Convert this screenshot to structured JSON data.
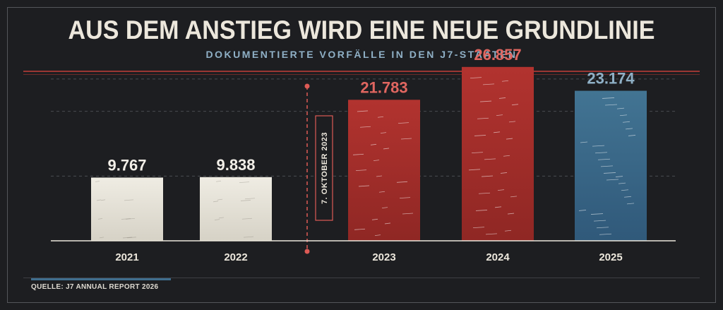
{
  "header": {
    "title": "AUS DEM ANSTIEG WIRD EINE NEUE GRUNDLINIE",
    "subtitle": "DOKUMENTIERTE VORFÄLLE IN DEN J7-STAATEN"
  },
  "footer": {
    "source": "QUELLE: J7 ANNUAL REPORT 2026"
  },
  "colors": {
    "pre_event": "#e5e2d8",
    "post_event": "#a8302d",
    "latest": "#3b6a8b",
    "event_line": "#dd5a55",
    "label_red": "#e06660",
    "label_blue": "#8fb0c6",
    "label_light": "#f2efe8"
  },
  "chart_data": {
    "type": "bar",
    "title": "AUS DEM ANSTIEG WIRD EINE NEUE GRUNDLINIE",
    "subtitle": "DOKUMENTIERTE VORFÄLLE IN DEN J7-STAATEN",
    "categories": [
      "2021",
      "2022",
      "2023",
      "2024",
      "2025"
    ],
    "values": [
      9767,
      9838,
      21783,
      26857,
      23174
    ],
    "value_labels": [
      "9.767",
      "9.838",
      "21.783",
      "26.857",
      "23.174"
    ],
    "bar_colors": [
      "#e5e2d8",
      "#e5e2d8",
      "#a8302d",
      "#a8302d",
      "#3b6a8b"
    ],
    "label_colors": [
      "#f2efe8",
      "#f2efe8",
      "#e06660",
      "#e06660",
      "#8fb0c6"
    ],
    "ylim": [
      0,
      30000
    ],
    "gridlines": [
      10000,
      20000,
      25000
    ],
    "grid": "dashed",
    "annotations": [
      {
        "text": "7. OKTOBER 2023",
        "position": "between 2022 and 2023"
      }
    ],
    "source": "QUELLE: J7 ANNUAL REPORT 2026"
  }
}
